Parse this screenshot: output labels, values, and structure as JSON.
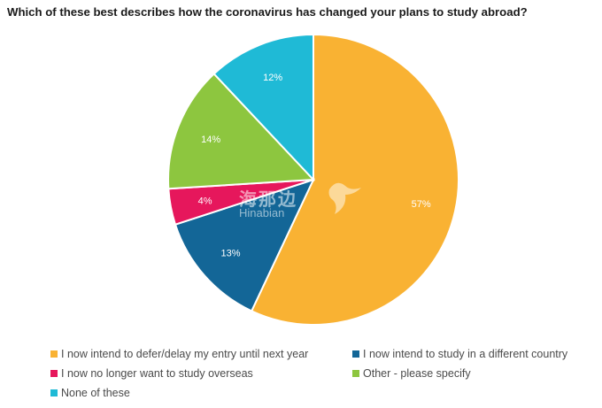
{
  "chart_data": {
    "type": "pie",
    "title": "Which of these best describes how the coronavirus has changed your plans to study abroad?",
    "slices": [
      {
        "label": "I now intend to defer/delay my entry until next year",
        "value": 57,
        "display": "57%",
        "color": "#F9B233"
      },
      {
        "label": "I now intend to study in a different country",
        "value": 13,
        "display": "13%",
        "color": "#136697"
      },
      {
        "label": "I now no longer want to study overseas",
        "value": 4,
        "display": "4%",
        "color": "#E6175C"
      },
      {
        "label": "Other - please specify",
        "value": 14,
        "display": "14%",
        "color": "#8DC63F"
      },
      {
        "label": "None of these",
        "value": 12,
        "display": "12%",
        "color": "#1FBAD6"
      }
    ],
    "legend_position": "bottom"
  },
  "watermark": {
    "cn": "海那边",
    "en": "Hinabian"
  }
}
